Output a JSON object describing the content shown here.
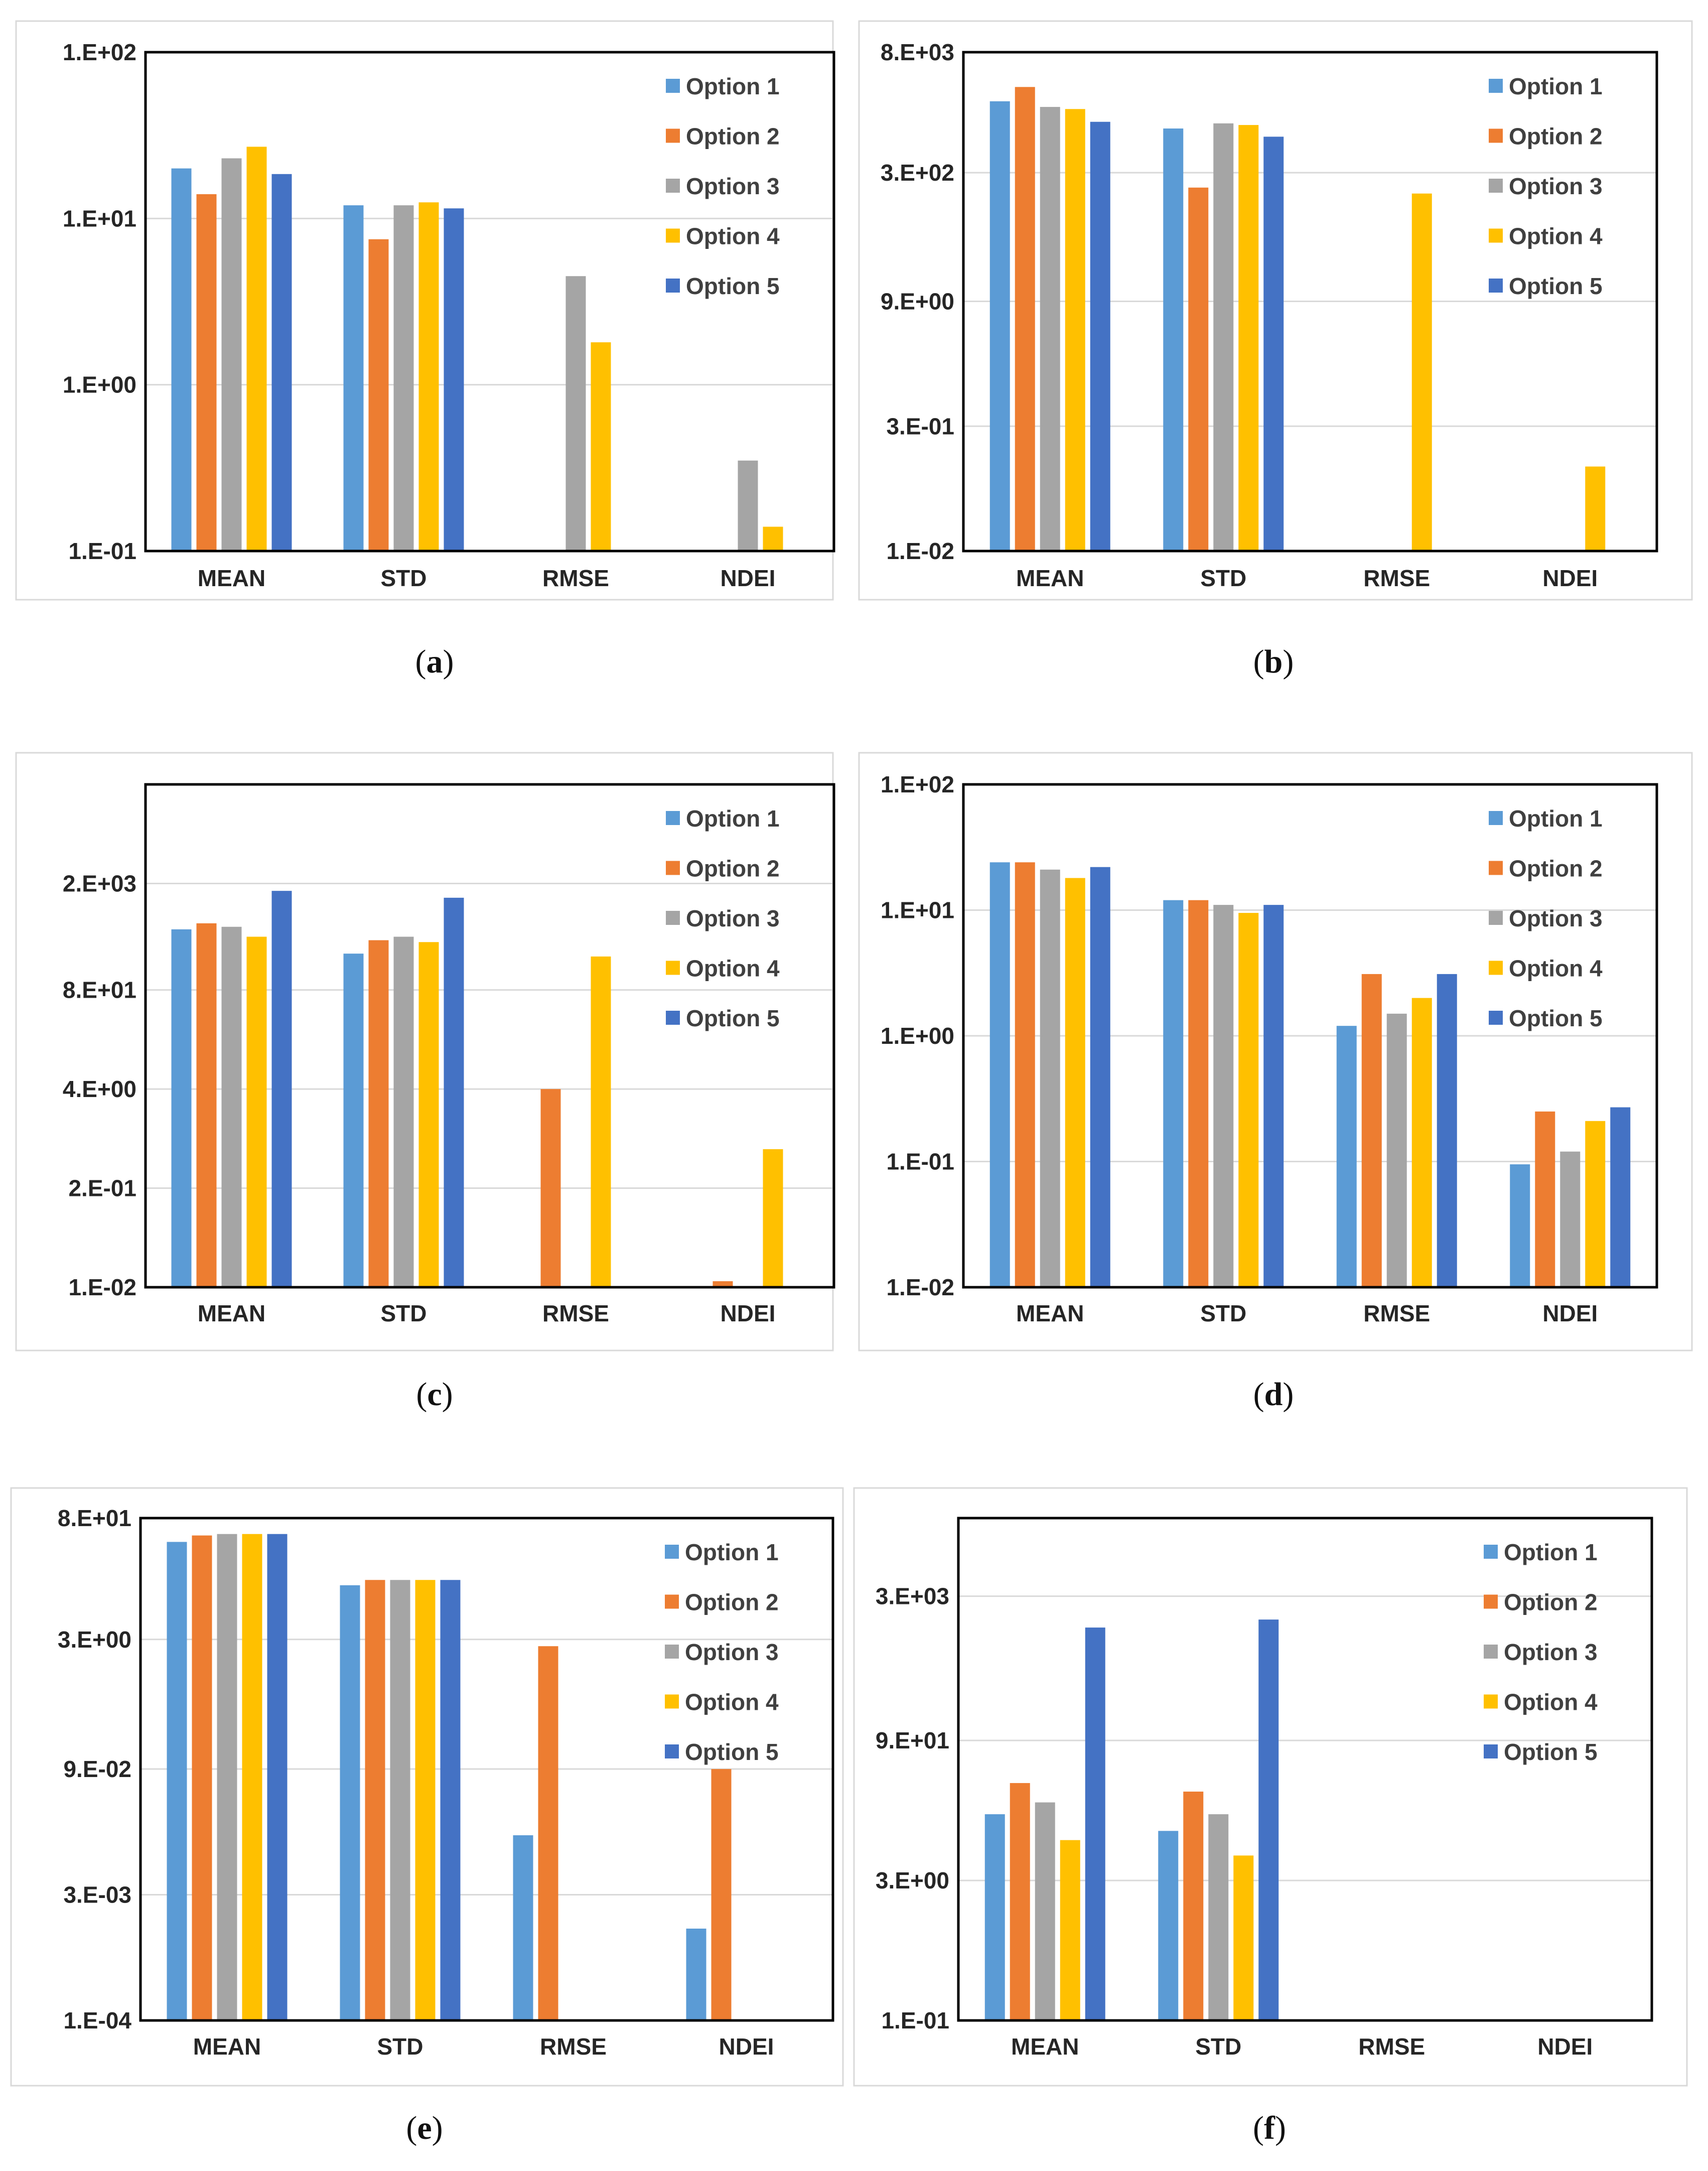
{
  "chart_data": [
    {
      "id": "a",
      "caption": "(a)",
      "type": "bar",
      "scale": "log",
      "categories": [
        "MEAN",
        "STD",
        "RMSE",
        "NDEI"
      ],
      "ylim": [
        0.1,
        100
      ],
      "ytick_values": [
        0.1,
        1,
        10,
        100
      ],
      "ytick_labels": [
        "1.E-01",
        "1.E+00",
        "1.E+01",
        "1.E+02"
      ],
      "legend": "top-right",
      "series": [
        {
          "name": "Option 1",
          "color": "#5B9BD5",
          "values": [
            20,
            12,
            null,
            null
          ]
        },
        {
          "name": "Option 2",
          "color": "#ED7D31",
          "values": [
            14,
            7.5,
            null,
            null
          ]
        },
        {
          "name": "Option 3",
          "color": "#A5A5A5",
          "values": [
            23,
            12,
            4.5,
            0.35
          ]
        },
        {
          "name": "Option 4",
          "color": "#FFC000",
          "values": [
            27,
            12.5,
            1.8,
            0.14
          ]
        },
        {
          "name": "Option 5",
          "color": "#4472C4",
          "values": [
            18.5,
            11.5,
            null,
            null
          ]
        }
      ]
    },
    {
      "id": "b",
      "caption": "(b)",
      "type": "bar",
      "scale": "log",
      "categories": [
        "MEAN",
        "STD",
        "RMSE",
        "NDEI"
      ],
      "ylim": [
        0.01,
        8000
      ],
      "ytick_values": [
        0.01,
        0.3,
        9,
        300,
        8000
      ],
      "ytick_labels": [
        "1.E-02",
        "3.E-01",
        "9.E+00",
        "3.E+02",
        "8.E+03"
      ],
      "legend": "top-right",
      "series": [
        {
          "name": "Option 1",
          "color": "#5B9BD5",
          "values": [
            2100,
            1000,
            null,
            null
          ]
        },
        {
          "name": "Option 2",
          "color": "#ED7D31",
          "values": [
            3100,
            200,
            null,
            null
          ]
        },
        {
          "name": "Option 3",
          "color": "#A5A5A5",
          "values": [
            1800,
            1150,
            null,
            null
          ]
        },
        {
          "name": "Option 4",
          "color": "#FFC000",
          "values": [
            1700,
            1100,
            170,
            0.1
          ]
        },
        {
          "name": "Option 5",
          "color": "#4472C4",
          "values": [
            1200,
            800,
            null,
            null
          ]
        }
      ]
    },
    {
      "id": "c",
      "caption": "(c)",
      "type": "bar",
      "scale": "log",
      "categories": [
        "MEAN",
        "STD",
        "RMSE",
        "NDEI"
      ],
      "ylim": [
        0.01,
        40000
      ],
      "ytick_values": [
        0.01,
        0.2,
        4,
        80,
        2000
      ],
      "ytick_labels": [
        "1.E-02",
        "2.E-01",
        "4.E+00",
        "8.E+01",
        "2.E+03"
      ],
      "legend": "top-right",
      "series": [
        {
          "name": "Option 1",
          "color": "#5B9BD5",
          "values": [
            500,
            240,
            null,
            null
          ]
        },
        {
          "name": "Option 2",
          "color": "#ED7D31",
          "values": [
            600,
            360,
            4,
            0.012
          ]
        },
        {
          "name": "Option 3",
          "color": "#A5A5A5",
          "values": [
            540,
            400,
            null,
            null
          ]
        },
        {
          "name": "Option 4",
          "color": "#FFC000",
          "values": [
            400,
            340,
            220,
            0.65
          ]
        },
        {
          "name": "Option 5",
          "color": "#4472C4",
          "values": [
            1600,
            1300,
            null,
            null
          ]
        }
      ]
    },
    {
      "id": "d",
      "caption": "(d)",
      "type": "bar",
      "scale": "log",
      "categories": [
        "MEAN",
        "STD",
        "RMSE",
        "NDEI"
      ],
      "ylim": [
        0.01,
        100
      ],
      "ytick_values": [
        0.01,
        0.1,
        1,
        10,
        100
      ],
      "ytick_labels": [
        "1.E-02",
        "1.E-01",
        "1.E+00",
        "1.E+01",
        "1.E+02"
      ],
      "legend": "top-right",
      "series": [
        {
          "name": "Option 1",
          "color": "#5B9BD5",
          "values": [
            24,
            12,
            1.2,
            0.095
          ]
        },
        {
          "name": "Option 2",
          "color": "#ED7D31",
          "values": [
            24,
            12,
            3.1,
            0.25
          ]
        },
        {
          "name": "Option 3",
          "color": "#A5A5A5",
          "values": [
            21,
            11,
            1.5,
            0.12
          ]
        },
        {
          "name": "Option 4",
          "color": "#FFC000",
          "values": [
            18,
            9.5,
            2,
            0.21
          ]
        },
        {
          "name": "Option 5",
          "color": "#4472C4",
          "values": [
            22,
            11,
            3.1,
            0.27
          ]
        }
      ]
    },
    {
      "id": "e",
      "caption": "(e)",
      "type": "bar",
      "scale": "log",
      "categories": [
        "MEAN",
        "STD",
        "RMSE",
        "NDEI"
      ],
      "ylim": [
        0.0001,
        80
      ],
      "ytick_values": [
        0.0001,
        0.003,
        0.09,
        3,
        80
      ],
      "ytick_labels": [
        "1.E-04",
        "3.E-03",
        "9.E-02",
        "3.E+00",
        "8.E+01"
      ],
      "legend": "top-right",
      "series": [
        {
          "name": "Option 1",
          "color": "#5B9BD5",
          "values": [
            42,
            13,
            0.015,
            0.0012
          ]
        },
        {
          "name": "Option 2",
          "color": "#ED7D31",
          "values": [
            50,
            15,
            2.5,
            0.09
          ]
        },
        {
          "name": "Option 3",
          "color": "#A5A5A5",
          "values": [
            52,
            15,
            null,
            null
          ]
        },
        {
          "name": "Option 4",
          "color": "#FFC000",
          "values": [
            52,
            15,
            null,
            null
          ]
        },
        {
          "name": "Option 5",
          "color": "#4472C4",
          "values": [
            52,
            15,
            null,
            null
          ]
        }
      ]
    },
    {
      "id": "f",
      "caption": "(f)",
      "type": "bar",
      "scale": "log",
      "categories": [
        "MEAN",
        "STD",
        "RMSE",
        "NDEI"
      ],
      "ylim": [
        0.1,
        20000
      ],
      "ytick_values": [
        0.1,
        3,
        90,
        3000
      ],
      "ytick_labels": [
        "1.E-01",
        "3.E+00",
        "9.E+01",
        "3.E+03"
      ],
      "legend": "top-right",
      "series": [
        {
          "name": "Option 1",
          "color": "#5B9BD5",
          "values": [
            15,
            10,
            null,
            null
          ]
        },
        {
          "name": "Option 2",
          "color": "#ED7D31",
          "values": [
            32,
            26,
            null,
            null
          ]
        },
        {
          "name": "Option 3",
          "color": "#A5A5A5",
          "values": [
            20,
            15,
            null,
            null
          ]
        },
        {
          "name": "Option 4",
          "color": "#FFC000",
          "values": [
            8,
            5.5,
            null,
            null
          ]
        },
        {
          "name": "Option 5",
          "color": "#4472C4",
          "values": [
            1400,
            1700,
            null,
            null
          ]
        }
      ]
    }
  ]
}
